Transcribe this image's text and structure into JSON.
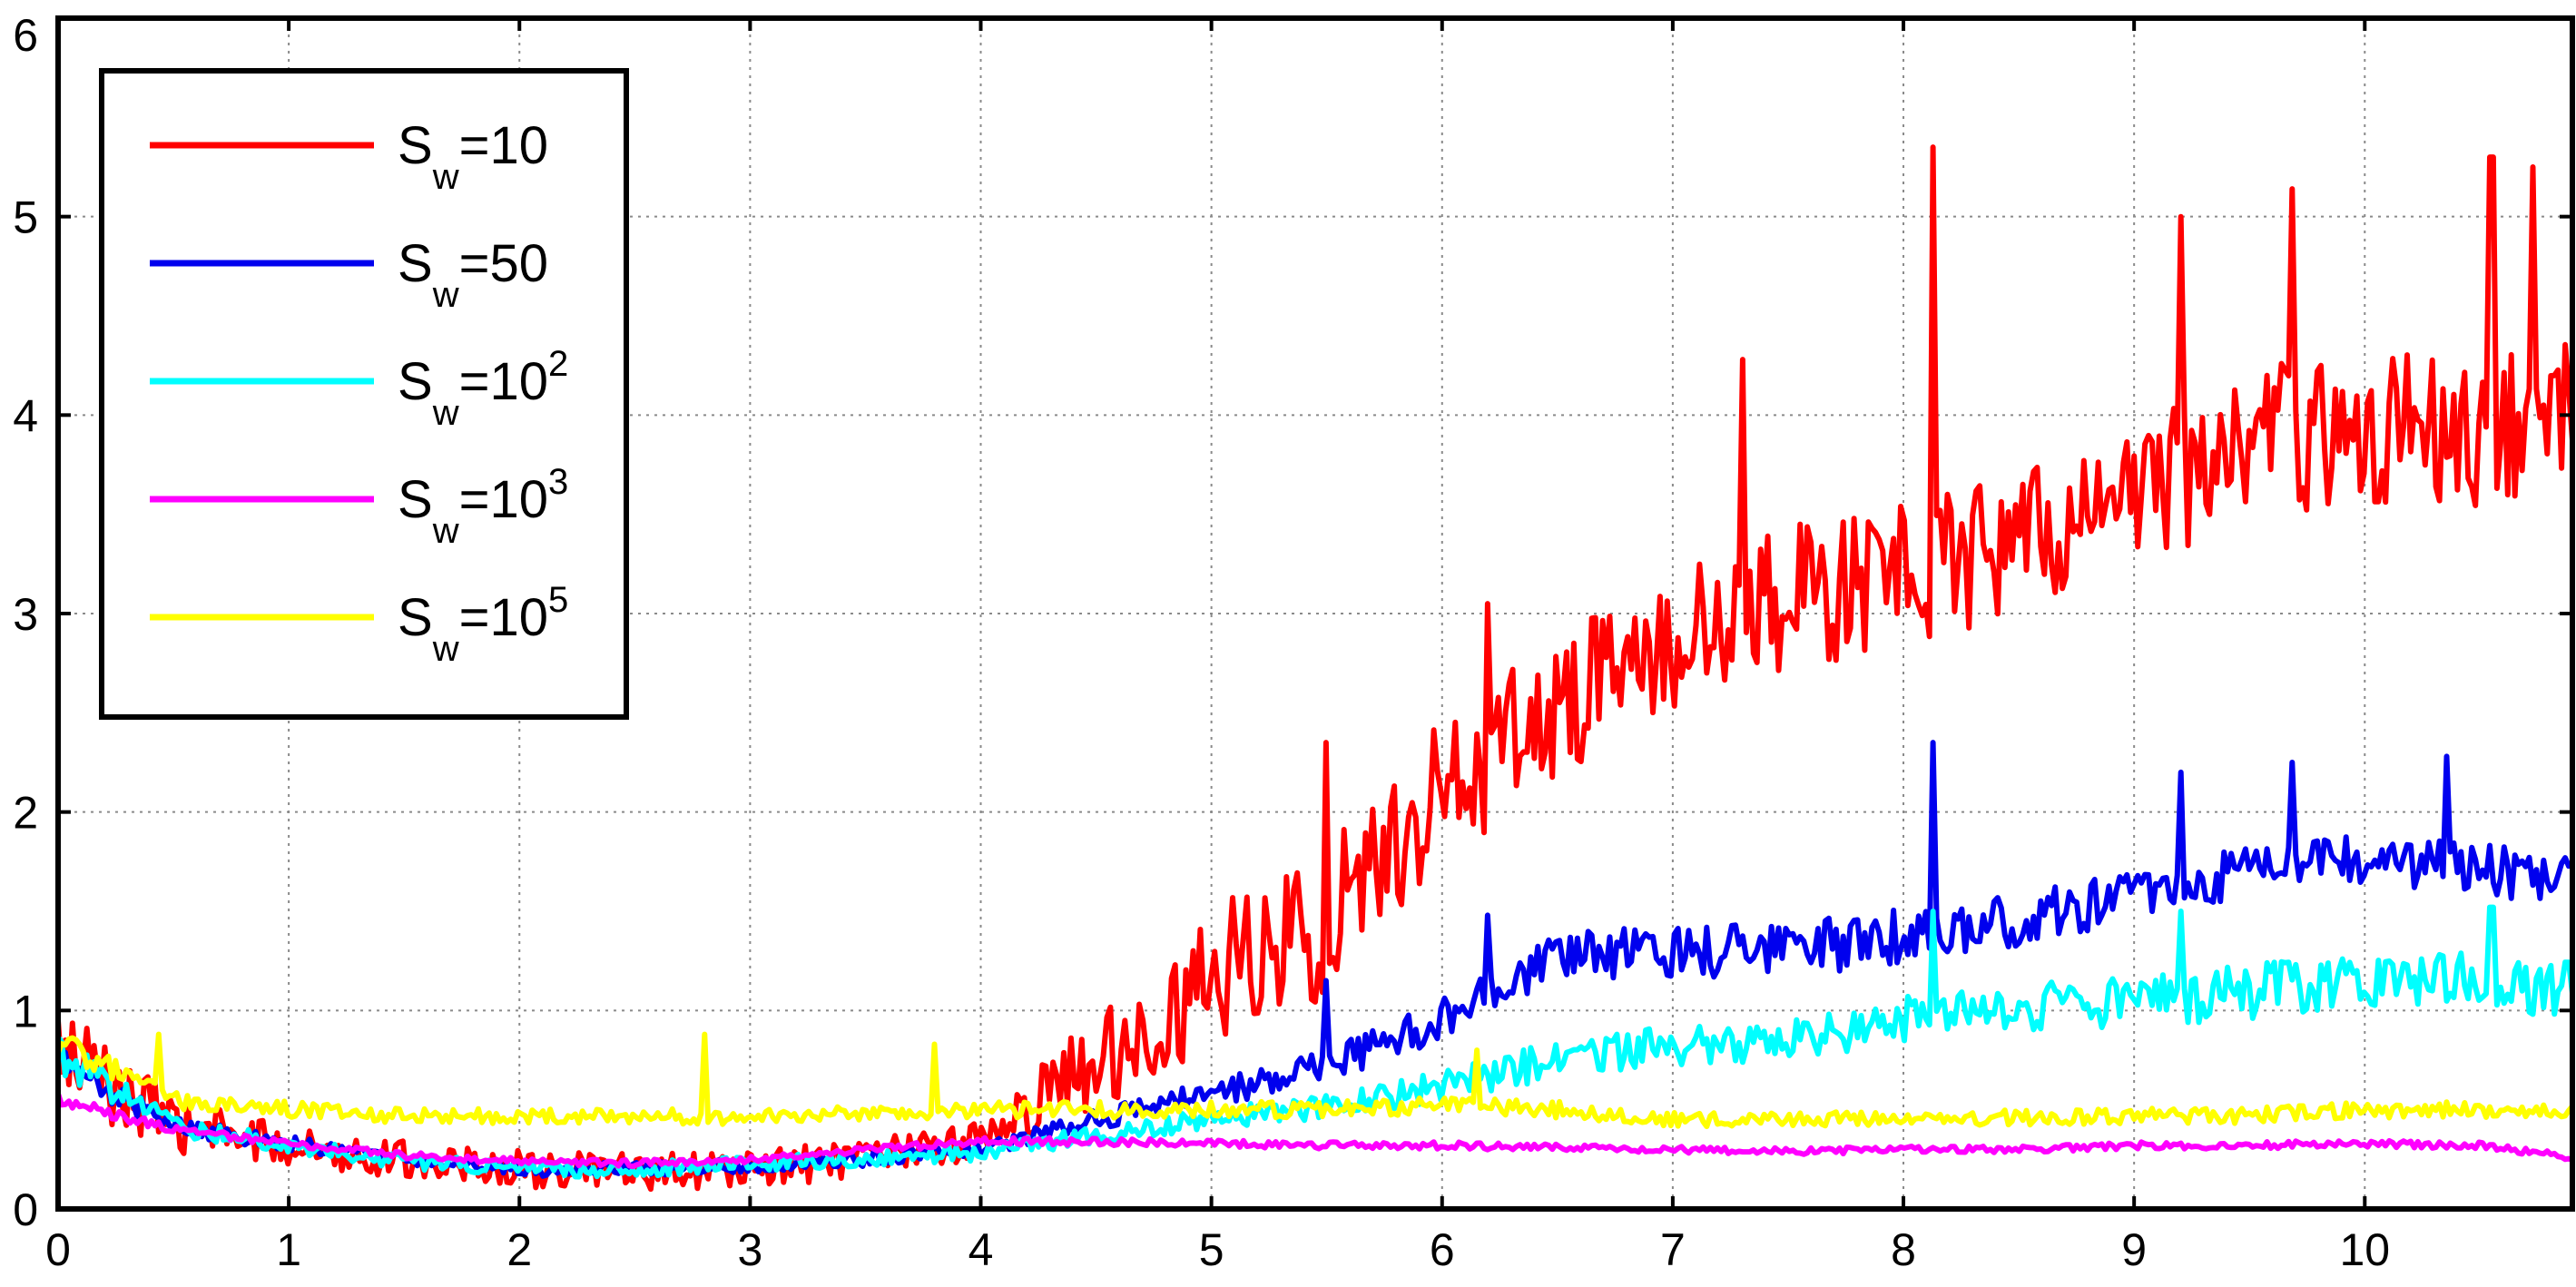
{
  "chart_data": {
    "type": "line",
    "title": "",
    "xlabel": "",
    "ylabel": "",
    "xlim": [
      0,
      10.9
    ],
    "ylim": [
      0,
      6
    ],
    "grid": true,
    "x_ticks": [
      0,
      1,
      2,
      3,
      4,
      5,
      6,
      7,
      8,
      9,
      10
    ],
    "y_ticks": [
      0,
      1,
      2,
      3,
      4,
      5,
      6
    ],
    "legend_position": "top-left",
    "x": [
      0,
      0.5,
      1,
      1.5,
      2,
      2.5,
      3,
      3.5,
      4,
      4.5,
      5,
      5.5,
      6,
      6.5,
      7,
      7.5,
      8,
      8.5,
      9,
      9.5,
      10,
      10.5,
      10.9
    ],
    "series": [
      {
        "name": "Sw=10",
        "legend_base": "S",
        "legend_sub": "w",
        "legend_rest": "=10",
        "legend_sup": "",
        "color": "#ff0000",
        "values": [
          0.8,
          0.42,
          0.32,
          0.25,
          0.2,
          0.18,
          0.2,
          0.25,
          0.35,
          0.75,
          1.15,
          1.45,
          2.1,
          2.55,
          2.85,
          3.05,
          3.2,
          3.35,
          3.6,
          3.85,
          3.95,
          3.9,
          4.1
        ],
        "noise": 0.7,
        "spikes": [
          [
            5.5,
            2.35
          ],
          [
            6.2,
            3.05
          ],
          [
            7.3,
            4.28
          ],
          [
            8.13,
            5.35
          ],
          [
            9.2,
            5.0
          ],
          [
            9.68,
            5.14
          ],
          [
            10.55,
            5.3
          ],
          [
            10.73,
            5.25
          ]
        ]
      },
      {
        "name": "Sw=50",
        "legend_base": "S",
        "legend_sub": "w",
        "legend_rest": "=50",
        "legend_sup": "",
        "color": "#0000ee",
        "values": [
          0.75,
          0.42,
          0.33,
          0.25,
          0.2,
          0.2,
          0.22,
          0.25,
          0.3,
          0.45,
          0.58,
          0.72,
          0.95,
          1.25,
          1.3,
          1.3,
          1.38,
          1.45,
          1.6,
          1.68,
          1.75,
          1.7,
          1.65
        ],
        "noise": 0.25,
        "spikes": [
          [
            5.5,
            1.15
          ],
          [
            6.2,
            1.48
          ],
          [
            8.13,
            2.35
          ],
          [
            9.2,
            2.2
          ],
          [
            9.68,
            2.25
          ],
          [
            10.35,
            2.28
          ]
        ]
      },
      {
        "name": "Sw=10^2",
        "legend_base": "S",
        "legend_sub": "w",
        "legend_rest": "=10",
        "legend_sup": "2",
        "color": "#00ffff",
        "values": [
          0.78,
          0.42,
          0.32,
          0.24,
          0.2,
          0.2,
          0.23,
          0.25,
          0.28,
          0.38,
          0.45,
          0.52,
          0.62,
          0.75,
          0.82,
          0.85,
          0.95,
          1.0,
          1.05,
          1.1,
          1.15,
          1.15,
          1.1
        ],
        "noise": 0.28,
        "spikes": [
          [
            8.13,
            1.5
          ],
          [
            9.2,
            1.5
          ],
          [
            10.55,
            1.52
          ]
        ]
      },
      {
        "name": "Sw=10^3",
        "legend_base": "S",
        "legend_sub": "w",
        "legend_rest": "=10",
        "legend_sup": "3",
        "color": "#ff00ff",
        "values": [
          0.55,
          0.4,
          0.33,
          0.27,
          0.24,
          0.23,
          0.25,
          0.3,
          0.34,
          0.34,
          0.33,
          0.32,
          0.32,
          0.31,
          0.3,
          0.29,
          0.3,
          0.3,
          0.32,
          0.32,
          0.33,
          0.32,
          0.26
        ],
        "noise": 0.12,
        "spikes": []
      },
      {
        "name": "Sw=10^5",
        "legend_base": "S",
        "legend_sub": "w",
        "legend_rest": "=10",
        "legend_sup": "5",
        "color": "#ffff00",
        "values": [
          0.85,
          0.55,
          0.5,
          0.47,
          0.47,
          0.47,
          0.46,
          0.48,
          0.5,
          0.5,
          0.5,
          0.5,
          0.52,
          0.5,
          0.45,
          0.45,
          0.46,
          0.46,
          0.47,
          0.47,
          0.5,
          0.5,
          0.5
        ],
        "noise": 0.18,
        "spikes": [
          [
            0.43,
            0.88
          ],
          [
            2.8,
            0.88
          ],
          [
            3.8,
            0.83
          ],
          [
            6.15,
            0.8
          ]
        ]
      }
    ]
  }
}
